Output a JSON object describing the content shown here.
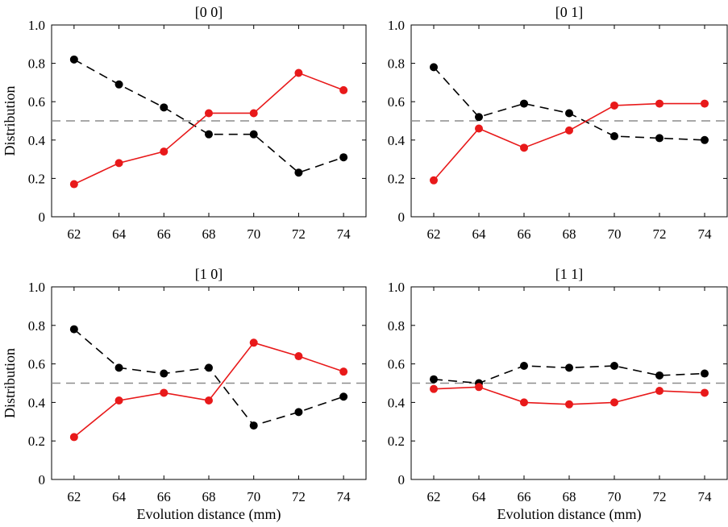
{
  "chart_data": [
    {
      "type": "line",
      "title": "[0 0]",
      "xlabel": "",
      "ylabel": "Distribution",
      "x": [
        62,
        64,
        66,
        68,
        70,
        72,
        74
      ],
      "xticks": [
        "62",
        "64",
        "66",
        "68",
        "70",
        "72",
        "74"
      ],
      "yticks": [
        "0",
        "0.2",
        "0.4",
        "0.6",
        "0.8",
        "1.0"
      ],
      "xlim": [
        61,
        75
      ],
      "ylim": [
        0,
        1
      ],
      "reference_line": 0.5,
      "series": [
        {
          "style": "dashed-black",
          "color": "#000000",
          "values": [
            0.82,
            0.69,
            0.57,
            0.43,
            0.43,
            0.23,
            0.31
          ]
        },
        {
          "style": "solid-red",
          "color": "#e8191a",
          "values": [
            0.17,
            0.28,
            0.34,
            0.54,
            0.54,
            0.75,
            0.66
          ]
        }
      ]
    },
    {
      "type": "line",
      "title": "[0 1]",
      "xlabel": "",
      "ylabel": "",
      "x": [
        62,
        64,
        66,
        68,
        70,
        72,
        74
      ],
      "xticks": [
        "62",
        "64",
        "66",
        "68",
        "70",
        "72",
        "74"
      ],
      "yticks": [
        "0",
        "0.2",
        "0.4",
        "0.6",
        "0.8",
        "1.0"
      ],
      "xlim": [
        61,
        75
      ],
      "ylim": [
        0,
        1
      ],
      "reference_line": 0.5,
      "series": [
        {
          "style": "dashed-black",
          "color": "#000000",
          "values": [
            0.78,
            0.52,
            0.59,
            0.54,
            0.42,
            0.41,
            0.4
          ]
        },
        {
          "style": "solid-red",
          "color": "#e8191a",
          "values": [
            0.19,
            0.46,
            0.36,
            0.45,
            0.58,
            0.59,
            0.59
          ]
        }
      ]
    },
    {
      "type": "line",
      "title": "[1 0]",
      "xlabel": "Evolution distance (mm)",
      "ylabel": "Distribution",
      "x": [
        62,
        64,
        66,
        68,
        70,
        72,
        74
      ],
      "xticks": [
        "62",
        "64",
        "66",
        "68",
        "70",
        "72",
        "74"
      ],
      "yticks": [
        "0",
        "0.2",
        "0.4",
        "0.6",
        "0.8",
        "1.0"
      ],
      "xlim": [
        61,
        75
      ],
      "ylim": [
        0,
        1
      ],
      "reference_line": 0.5,
      "series": [
        {
          "style": "dashed-black",
          "color": "#000000",
          "values": [
            0.78,
            0.58,
            0.55,
            0.58,
            0.28,
            0.35,
            0.43
          ]
        },
        {
          "style": "solid-red",
          "color": "#e8191a",
          "values": [
            0.22,
            0.41,
            0.45,
            0.41,
            0.71,
            0.64,
            0.56
          ]
        }
      ]
    },
    {
      "type": "line",
      "title": "[1 1]",
      "xlabel": "Evolution distance (mm)",
      "ylabel": "",
      "x": [
        62,
        64,
        66,
        68,
        70,
        72,
        74
      ],
      "xticks": [
        "62",
        "64",
        "66",
        "68",
        "70",
        "72",
        "74"
      ],
      "yticks": [
        "0",
        "0.2",
        "0.4",
        "0.6",
        "0.8",
        "1.0"
      ],
      "xlim": [
        61,
        75
      ],
      "ylim": [
        0,
        1
      ],
      "reference_line": 0.5,
      "series": [
        {
          "style": "dashed-black",
          "color": "#000000",
          "values": [
            0.52,
            0.5,
            0.59,
            0.58,
            0.59,
            0.54,
            0.55
          ]
        },
        {
          "style": "solid-red",
          "color": "#e8191a",
          "values": [
            0.47,
            0.48,
            0.4,
            0.39,
            0.4,
            0.46,
            0.45
          ]
        }
      ]
    }
  ]
}
